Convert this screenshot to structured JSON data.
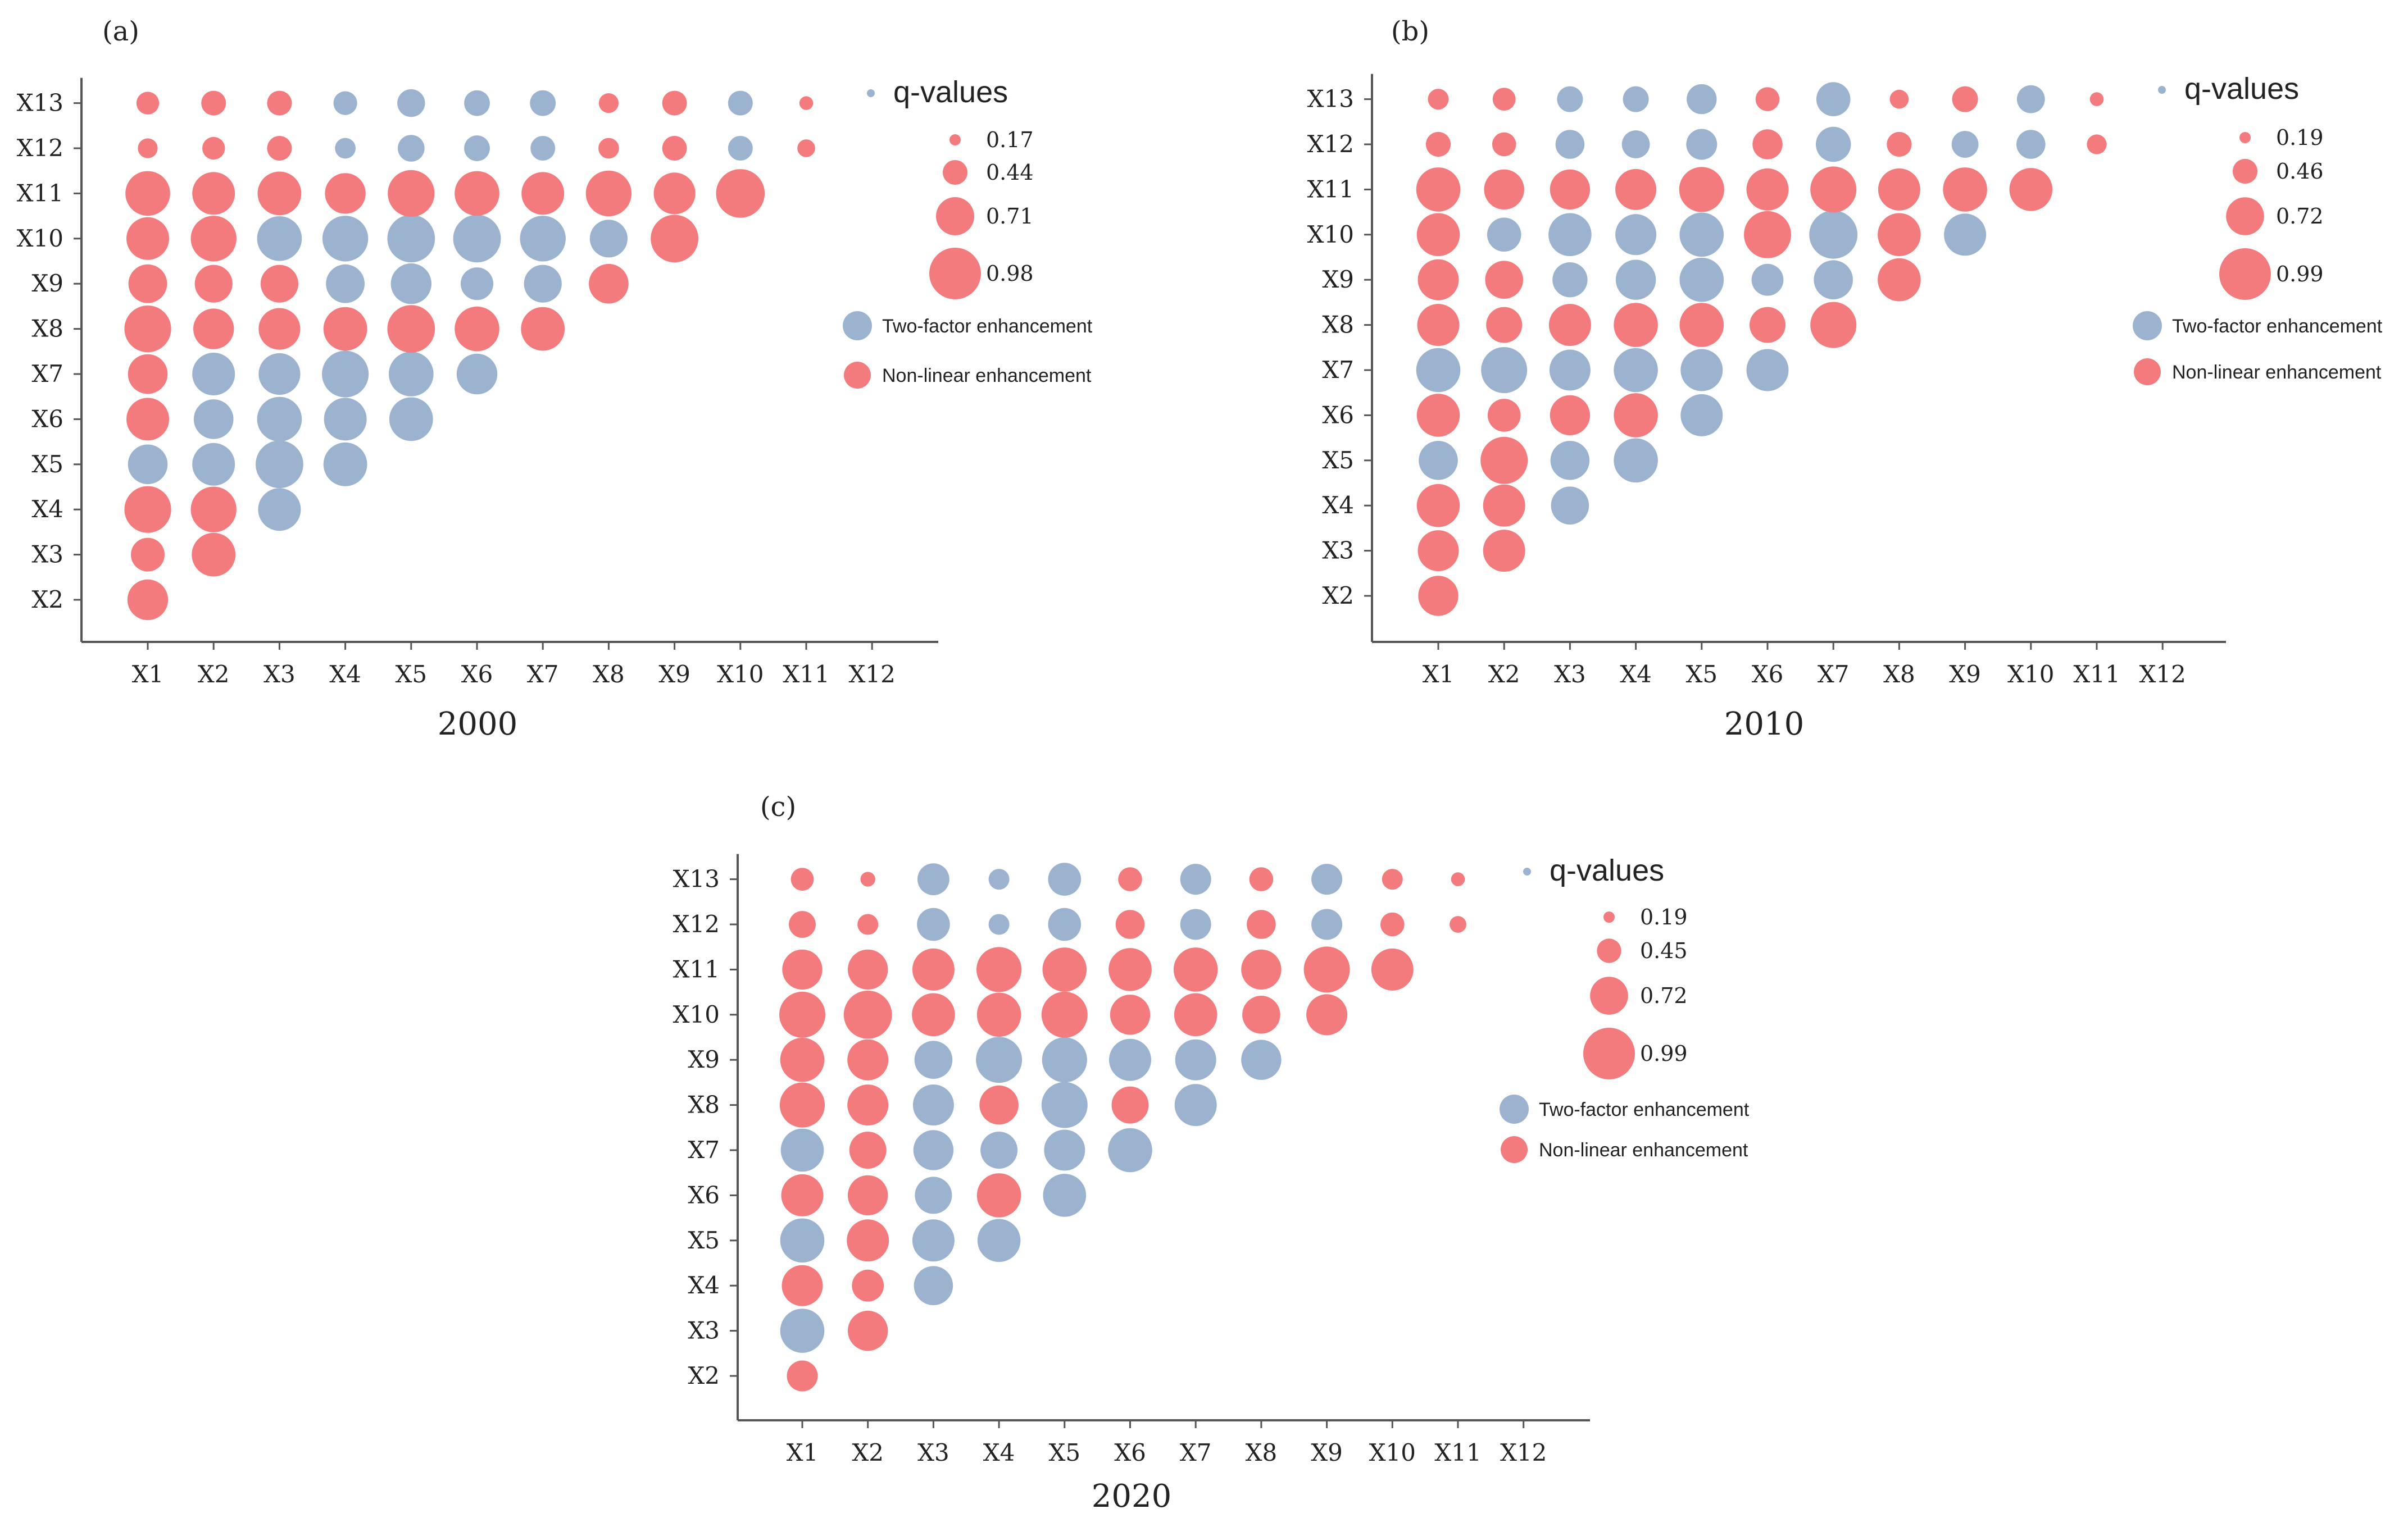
{
  "figure": {
    "colors": {
      "two_factor": "#9bb3cf",
      "non_linear": "#f47b7d",
      "axis": "#555555",
      "text": "#222222"
    },
    "legend": {
      "title": "q-values",
      "two_factor": "Two-factor enhancement",
      "non_linear": "Non-linear enhancement"
    },
    "x_categories": [
      "X1",
      "X2",
      "X3",
      "X4",
      "X5",
      "X6",
      "X7",
      "X8",
      "X9",
      "X10",
      "X11",
      "X12"
    ],
    "y_categories": [
      "X2",
      "X3",
      "X4",
      "X5",
      "X6",
      "X7",
      "X8",
      "X9",
      "X10",
      "X11",
      "X12",
      "X13"
    ]
  },
  "chart_data": [
    {
      "type": "scatter",
      "panel_label": "(a)",
      "title": "2000",
      "size_legend": [
        "0.17",
        "0.44",
        "0.71",
        "0.98"
      ],
      "size_legend_values": [
        0.17,
        0.44,
        0.71,
        0.98
      ],
      "q_range": [
        0.17,
        0.98
      ],
      "rows": {
        "X13": [
          [
            0.4,
            "N"
          ],
          [
            0.44,
            "N"
          ],
          [
            0.44,
            "N"
          ],
          [
            0.42,
            "T"
          ],
          [
            0.5,
            "T"
          ],
          [
            0.46,
            "T"
          ],
          [
            0.46,
            "T"
          ],
          [
            0.34,
            "N"
          ],
          [
            0.44,
            "N"
          ],
          [
            0.44,
            "T"
          ],
          [
            0.22,
            "N"
          ]
        ],
        "X12": [
          [
            0.34,
            "N"
          ],
          [
            0.4,
            "N"
          ],
          [
            0.44,
            "N"
          ],
          [
            0.36,
            "T"
          ],
          [
            0.48,
            "T"
          ],
          [
            0.46,
            "T"
          ],
          [
            0.44,
            "T"
          ],
          [
            0.36,
            "N"
          ],
          [
            0.44,
            "N"
          ],
          [
            0.44,
            "T"
          ],
          [
            0.3,
            "N"
          ]
        ],
        "X11": [
          [
            0.84,
            "N"
          ],
          [
            0.8,
            "N"
          ],
          [
            0.82,
            "N"
          ],
          [
            0.76,
            "N"
          ],
          [
            0.88,
            "N"
          ],
          [
            0.84,
            "N"
          ],
          [
            0.8,
            "N"
          ],
          [
            0.86,
            "N"
          ],
          [
            0.78,
            "N"
          ],
          [
            0.92,
            "N"
          ]
        ],
        "X10": [
          [
            0.8,
            "N"
          ],
          [
            0.86,
            "N"
          ],
          [
            0.84,
            "T"
          ],
          [
            0.86,
            "T"
          ],
          [
            0.9,
            "T"
          ],
          [
            0.9,
            "T"
          ],
          [
            0.86,
            "T"
          ],
          [
            0.7,
            "T"
          ],
          [
            0.9,
            "N"
          ]
        ],
        "X9": [
          [
            0.72,
            "N"
          ],
          [
            0.7,
            "N"
          ],
          [
            0.7,
            "N"
          ],
          [
            0.72,
            "T"
          ],
          [
            0.76,
            "T"
          ],
          [
            0.6,
            "T"
          ],
          [
            0.7,
            "T"
          ],
          [
            0.74,
            "N"
          ]
        ],
        "X8": [
          [
            0.88,
            "N"
          ],
          [
            0.76,
            "N"
          ],
          [
            0.78,
            "N"
          ],
          [
            0.82,
            "N"
          ],
          [
            0.9,
            "N"
          ],
          [
            0.84,
            "N"
          ],
          [
            0.82,
            "N"
          ]
        ],
        "X7": [
          [
            0.74,
            "N"
          ],
          [
            0.8,
            "T"
          ],
          [
            0.78,
            "T"
          ],
          [
            0.88,
            "T"
          ],
          [
            0.84,
            "T"
          ],
          [
            0.76,
            "T"
          ]
        ],
        "X6": [
          [
            0.8,
            "N"
          ],
          [
            0.74,
            "T"
          ],
          [
            0.84,
            "T"
          ],
          [
            0.8,
            "T"
          ],
          [
            0.82,
            "T"
          ]
        ],
        "X5": [
          [
            0.74,
            "T"
          ],
          [
            0.8,
            "T"
          ],
          [
            0.9,
            "T"
          ],
          [
            0.82,
            "T"
          ]
        ],
        "X4": [
          [
            0.88,
            "N"
          ],
          [
            0.86,
            "N"
          ],
          [
            0.8,
            "T"
          ]
        ],
        "X3": [
          [
            0.62,
            "N"
          ],
          [
            0.82,
            "N"
          ]
        ],
        "X2": [
          [
            0.76,
            "N"
          ]
        ]
      }
    },
    {
      "type": "scatter",
      "panel_label": "(b)",
      "title": "2010",
      "size_legend": [
        "0.19",
        "0.46",
        "0.72",
        "0.99"
      ],
      "size_legend_values": [
        0.19,
        0.46,
        0.72,
        0.99
      ],
      "q_range": [
        0.19,
        0.99
      ],
      "rows": {
        "X13": [
          [
            0.38,
            "N"
          ],
          [
            0.42,
            "N"
          ],
          [
            0.48,
            "T"
          ],
          [
            0.48,
            "T"
          ],
          [
            0.56,
            "T"
          ],
          [
            0.44,
            "N"
          ],
          [
            0.64,
            "T"
          ],
          [
            0.34,
            "N"
          ],
          [
            0.48,
            "N"
          ],
          [
            0.52,
            "T"
          ],
          [
            0.24,
            "N"
          ]
        ],
        "X12": [
          [
            0.46,
            "N"
          ],
          [
            0.44,
            "N"
          ],
          [
            0.54,
            "T"
          ],
          [
            0.52,
            "T"
          ],
          [
            0.58,
            "T"
          ],
          [
            0.56,
            "N"
          ],
          [
            0.66,
            "T"
          ],
          [
            0.46,
            "N"
          ],
          [
            0.5,
            "T"
          ],
          [
            0.54,
            "T"
          ],
          [
            0.36,
            "N"
          ]
        ],
        "X11": [
          [
            0.84,
            "N"
          ],
          [
            0.76,
            "N"
          ],
          [
            0.76,
            "N"
          ],
          [
            0.78,
            "N"
          ],
          [
            0.86,
            "N"
          ],
          [
            0.8,
            "N"
          ],
          [
            0.88,
            "N"
          ],
          [
            0.8,
            "N"
          ],
          [
            0.84,
            "N"
          ],
          [
            0.82,
            "N"
          ]
        ],
        "X10": [
          [
            0.82,
            "N"
          ],
          [
            0.64,
            "T"
          ],
          [
            0.82,
            "T"
          ],
          [
            0.78,
            "T"
          ],
          [
            0.84,
            "T"
          ],
          [
            0.9,
            "N"
          ],
          [
            0.92,
            "T"
          ],
          [
            0.82,
            "N"
          ],
          [
            0.8,
            "T"
          ]
        ],
        "X9": [
          [
            0.78,
            "N"
          ],
          [
            0.72,
            "N"
          ],
          [
            0.66,
            "T"
          ],
          [
            0.76,
            "T"
          ],
          [
            0.84,
            "T"
          ],
          [
            0.6,
            "T"
          ],
          [
            0.74,
            "T"
          ],
          [
            0.82,
            "N"
          ]
        ],
        "X8": [
          [
            0.8,
            "N"
          ],
          [
            0.68,
            "N"
          ],
          [
            0.8,
            "N"
          ],
          [
            0.84,
            "N"
          ],
          [
            0.84,
            "N"
          ],
          [
            0.68,
            "N"
          ],
          [
            0.88,
            "N"
          ]
        ],
        "X7": [
          [
            0.84,
            "T"
          ],
          [
            0.88,
            "T"
          ],
          [
            0.78,
            "T"
          ],
          [
            0.84,
            "T"
          ],
          [
            0.8,
            "T"
          ],
          [
            0.8,
            "T"
          ]
        ],
        "X6": [
          [
            0.82,
            "N"
          ],
          [
            0.62,
            "N"
          ],
          [
            0.76,
            "N"
          ],
          [
            0.84,
            "N"
          ],
          [
            0.8,
            "T"
          ]
        ],
        "X5": [
          [
            0.74,
            "T"
          ],
          [
            0.9,
            "N"
          ],
          [
            0.74,
            "T"
          ],
          [
            0.84,
            "T"
          ]
        ],
        "X4": [
          [
            0.82,
            "N"
          ],
          [
            0.8,
            "N"
          ],
          [
            0.72,
            "T"
          ]
        ],
        "X3": [
          [
            0.78,
            "N"
          ],
          [
            0.8,
            "N"
          ]
        ],
        "X2": [
          [
            0.76,
            "N"
          ]
        ]
      }
    },
    {
      "type": "scatter",
      "panel_label": "(c)",
      "title": "2020",
      "size_legend": [
        "0.19",
        "0.45",
        "0.72",
        "0.99"
      ],
      "size_legend_values": [
        0.19,
        0.45,
        0.72,
        0.99
      ],
      "q_range": [
        0.19,
        0.99
      ],
      "rows": {
        "X13": [
          [
            0.42,
            "N"
          ],
          [
            0.26,
            "N"
          ],
          [
            0.6,
            "T"
          ],
          [
            0.38,
            "T"
          ],
          [
            0.62,
            "T"
          ],
          [
            0.44,
            "N"
          ],
          [
            0.58,
            "T"
          ],
          [
            0.44,
            "N"
          ],
          [
            0.58,
            "T"
          ],
          [
            0.38,
            "N"
          ],
          [
            0.24,
            "N"
          ]
        ],
        "X12": [
          [
            0.5,
            "N"
          ],
          [
            0.38,
            "N"
          ],
          [
            0.62,
            "T"
          ],
          [
            0.38,
            "T"
          ],
          [
            0.62,
            "T"
          ],
          [
            0.54,
            "N"
          ],
          [
            0.58,
            "T"
          ],
          [
            0.54,
            "N"
          ],
          [
            0.58,
            "T"
          ],
          [
            0.44,
            "N"
          ],
          [
            0.3,
            "N"
          ]
        ],
        "X11": [
          [
            0.76,
            "N"
          ],
          [
            0.76,
            "N"
          ],
          [
            0.8,
            "N"
          ],
          [
            0.86,
            "N"
          ],
          [
            0.84,
            "N"
          ],
          [
            0.82,
            "N"
          ],
          [
            0.84,
            "N"
          ],
          [
            0.76,
            "N"
          ],
          [
            0.88,
            "N"
          ],
          [
            0.8,
            "N"
          ]
        ],
        "X10": [
          [
            0.88,
            "N"
          ],
          [
            0.92,
            "N"
          ],
          [
            0.82,
            "N"
          ],
          [
            0.84,
            "N"
          ],
          [
            0.88,
            "N"
          ],
          [
            0.76,
            "N"
          ],
          [
            0.82,
            "N"
          ],
          [
            0.72,
            "N"
          ],
          [
            0.78,
            "N"
          ]
        ],
        "X9": [
          [
            0.84,
            "N"
          ],
          [
            0.78,
            "N"
          ],
          [
            0.72,
            "T"
          ],
          [
            0.88,
            "T"
          ],
          [
            0.86,
            "T"
          ],
          [
            0.8,
            "T"
          ],
          [
            0.78,
            "T"
          ],
          [
            0.76,
            "T"
          ]
        ],
        "X8": [
          [
            0.86,
            "N"
          ],
          [
            0.78,
            "N"
          ],
          [
            0.78,
            "T"
          ],
          [
            0.74,
            "N"
          ],
          [
            0.88,
            "T"
          ],
          [
            0.7,
            "N"
          ],
          [
            0.8,
            "T"
          ]
        ],
        "X7": [
          [
            0.82,
            "T"
          ],
          [
            0.7,
            "N"
          ],
          [
            0.76,
            "T"
          ],
          [
            0.7,
            "T"
          ],
          [
            0.78,
            "T"
          ],
          [
            0.84,
            "T"
          ]
        ],
        "X6": [
          [
            0.8,
            "N"
          ],
          [
            0.76,
            "N"
          ],
          [
            0.7,
            "T"
          ],
          [
            0.84,
            "N"
          ],
          [
            0.82,
            "T"
          ]
        ],
        "X5": [
          [
            0.84,
            "T"
          ],
          [
            0.8,
            "N"
          ],
          [
            0.8,
            "T"
          ],
          [
            0.82,
            "T"
          ]
        ],
        "X4": [
          [
            0.78,
            "N"
          ],
          [
            0.6,
            "N"
          ],
          [
            0.74,
            "T"
          ]
        ],
        "X3": [
          [
            0.84,
            "T"
          ],
          [
            0.76,
            "N"
          ]
        ],
        "X2": [
          [
            0.58,
            "N"
          ]
        ]
      }
    }
  ]
}
